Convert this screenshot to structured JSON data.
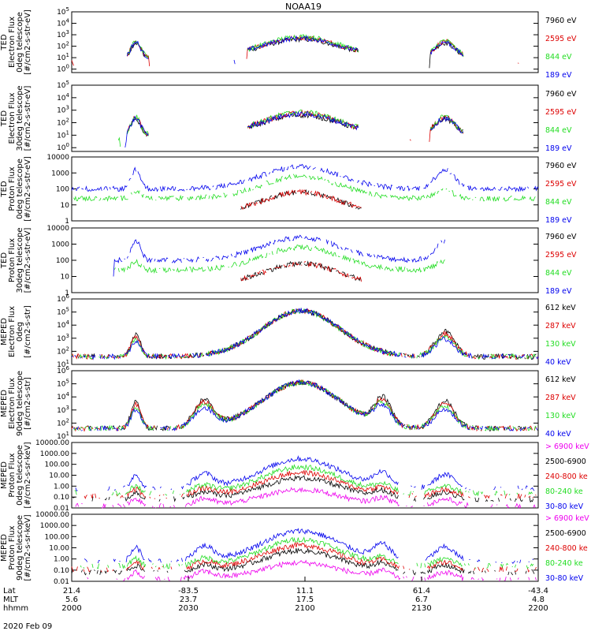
{
  "title": "NOAA19",
  "date_label": "2020 Feb 09",
  "colors": {
    "black": "#000000",
    "red": "#dd0000",
    "green": "#22dd22",
    "blue": "#0000ee",
    "magenta": "#ee00ee"
  },
  "chart_data": [
    {
      "type": "line",
      "ylabel": [
        "TED",
        "Electron Flux",
        "0deg telescope",
        "[#/cm2-s-str-eV]"
      ],
      "ytype": "log",
      "ylim": [
        0.5,
        100000
      ],
      "ytick_values": [
        1,
        10,
        100,
        1000,
        10000,
        100000
      ],
      "ytick_labels": [
        "10^0",
        "10^1",
        "10^2",
        "10^3",
        "10^4",
        "10^5"
      ],
      "series": [
        {
          "name": "7960 eV",
          "color": "#000000"
        },
        {
          "name": "2595 eV",
          "color": "#dd0000"
        },
        {
          "name": "844 eV",
          "color": "#22dd22"
        },
        {
          "name": "189 eV",
          "color": "#0000ee"
        }
      ]
    },
    {
      "type": "line",
      "ylabel": [
        "TED",
        "Electron Flux",
        "30deg telescope",
        "[#/cm2-s-str-eV]"
      ],
      "ytype": "log",
      "ylim": [
        0.5,
        100000
      ],
      "ytick_values": [
        1,
        10,
        100,
        1000,
        10000,
        100000
      ],
      "ytick_labels": [
        "10^0",
        "10^1",
        "10^2",
        "10^3",
        "10^4",
        "10^5"
      ],
      "series": [
        {
          "name": "7960 eV",
          "color": "#000000"
        },
        {
          "name": "2595 eV",
          "color": "#dd0000"
        },
        {
          "name": "844 eV",
          "color": "#22dd22"
        },
        {
          "name": "189 eV",
          "color": "#0000ee"
        }
      ]
    },
    {
      "type": "line",
      "ylabel": [
        "TED",
        "Proton Flux",
        "0deg telescope",
        "[#/cm2-s-str-eV]"
      ],
      "ytype": "log",
      "ylim": [
        1,
        10000
      ],
      "ytick_values": [
        1,
        10,
        100,
        1000,
        10000
      ],
      "ytick_labels": [
        "1",
        "10",
        "100",
        "1000",
        "10000"
      ],
      "series": [
        {
          "name": "7960 eV",
          "color": "#000000"
        },
        {
          "name": "2595 eV",
          "color": "#dd0000"
        },
        {
          "name": "844 eV",
          "color": "#22dd22"
        },
        {
          "name": "189 eV",
          "color": "#0000ee"
        }
      ]
    },
    {
      "type": "line",
      "ylabel": [
        "TED",
        "Proton Flux",
        "30deg telescope",
        "[#/cm2-s-str-eV]"
      ],
      "ytype": "log",
      "ylim": [
        1,
        10000
      ],
      "ytick_values": [
        1,
        10,
        100,
        1000,
        10000
      ],
      "ytick_labels": [
        "1",
        "10",
        "100",
        "1000",
        "10000"
      ],
      "series": [
        {
          "name": "7960 eV",
          "color": "#000000"
        },
        {
          "name": "2595 eV",
          "color": "#dd0000"
        },
        {
          "name": "844 eV",
          "color": "#22dd22"
        },
        {
          "name": "189 eV",
          "color": "#0000ee"
        }
      ]
    },
    {
      "type": "line",
      "ylabel": [
        "MEPED",
        "Electron Flux",
        "0deg",
        "[#/cm2-s-str]"
      ],
      "ytype": "log",
      "ylim": [
        10,
        1000000
      ],
      "ytick_values": [
        10,
        100,
        1000,
        10000,
        100000,
        1000000
      ],
      "ytick_labels": [
        "10^1",
        "10^2",
        "10^3",
        "10^4",
        "10^5",
        "10^6"
      ],
      "series": [
        {
          "name": "612 keV",
          "color": "#000000"
        },
        {
          "name": "287 keV",
          "color": "#dd0000"
        },
        {
          "name": "130 keV",
          "color": "#22dd22"
        },
        {
          "name": "40 keV",
          "color": "#0000ee"
        }
      ]
    },
    {
      "type": "line",
      "ylabel": [
        "MEPED",
        "Electron Flux",
        "90deg telescope",
        "[#/cm2-s-str]"
      ],
      "ytype": "log",
      "ylim": [
        10,
        1000000
      ],
      "ytick_values": [
        10,
        100,
        1000,
        10000,
        100000,
        1000000
      ],
      "ytick_labels": [
        "10^1",
        "10^2",
        "10^3",
        "10^4",
        "10^5",
        "10^6"
      ],
      "series": [
        {
          "name": "612 keV",
          "color": "#000000"
        },
        {
          "name": "287 keV",
          "color": "#dd0000"
        },
        {
          "name": "130 keV",
          "color": "#22dd22"
        },
        {
          "name": "40 keV",
          "color": "#0000ee"
        }
      ]
    },
    {
      "type": "line",
      "ylabel": [
        "MEPED",
        "Proton Flux",
        "0deg telescope",
        "[#/cm2-s-sr-keV]"
      ],
      "ytype": "log",
      "ylim": [
        0.01,
        10000
      ],
      "ytick_values": [
        0.01,
        0.1,
        1,
        10,
        100,
        1000,
        10000
      ],
      "ytick_labels": [
        "0.01",
        "0.10",
        "1.00",
        "10.00",
        "100.00",
        "1000.00",
        "10000.00"
      ],
      "series": [
        {
          "name": "> 6900 keV",
          "color": "#ee00ee"
        },
        {
          "name": "2500-6900",
          "color": "#000000"
        },
        {
          "name": "240-800 ke",
          "color": "#dd0000"
        },
        {
          "name": "80-240 ke",
          "color": "#22dd22"
        },
        {
          "name": "30-80 keV",
          "color": "#0000ee"
        }
      ]
    },
    {
      "type": "line",
      "ylabel": [
        "MEPED",
        "Proton Flux",
        "90deg telescope",
        "[#/cm2-s-sr-keV]"
      ],
      "ytype": "log",
      "ylim": [
        0.01,
        10000
      ],
      "ytick_values": [
        0.01,
        0.1,
        1,
        10,
        100,
        1000,
        10000
      ],
      "ytick_labels": [
        "0.01",
        "0.10",
        "1.00",
        "10.00",
        "100.00",
        "1000.00",
        "10000.00"
      ],
      "series": [
        {
          "name": "> 6900 keV",
          "color": "#ee00ee"
        },
        {
          "name": "2500-6900",
          "color": "#000000"
        },
        {
          "name": "240-800 ke",
          "color": "#dd0000"
        },
        {
          "name": "80-240 ke",
          "color": "#22dd22"
        },
        {
          "name": "30-80 keV",
          "color": "#0000ee"
        }
      ]
    }
  ],
  "x_axis": {
    "row_labels": [
      "Lat",
      "MLT",
      "hhmm"
    ],
    "ticks": [
      {
        "lat": "21.4",
        "mlt": "5.6",
        "hhmm": "2000"
      },
      {
        "lat": "-83.5",
        "mlt": "23.7",
        "hhmm": "2030"
      },
      {
        "lat": "11.1",
        "mlt": "17.5",
        "hhmm": "2100"
      },
      {
        "lat": "61.4",
        "mlt": "6.7",
        "hhmm": "2130"
      },
      {
        "lat": "-43.4",
        "mlt": "4.8",
        "hhmm": "2200"
      }
    ]
  }
}
